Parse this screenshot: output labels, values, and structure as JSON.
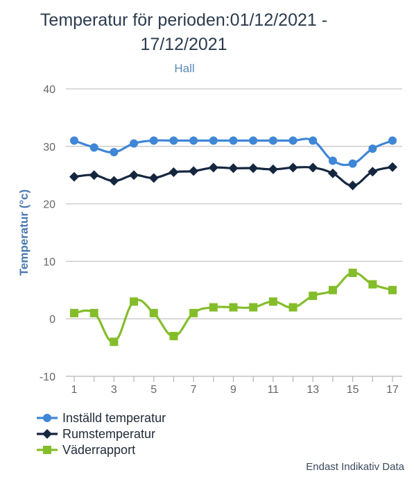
{
  "chart_data": {
    "type": "line",
    "title_line1": "Temperatur för perioden:01/12/2021 -",
    "title_line2": "17/12/2021",
    "subtitle": "Hall",
    "ylabel": "Temperatur (°c)",
    "xlabel": "",
    "x": [
      1,
      2,
      3,
      4,
      5,
      6,
      7,
      8,
      9,
      10,
      11,
      12,
      13,
      14,
      15,
      16,
      17
    ],
    "x_tick_labels": [
      "1",
      "3",
      "5",
      "7",
      "9",
      "11",
      "13",
      "15",
      "17"
    ],
    "y_tick_labels": [
      "40",
      "30",
      "20",
      "10",
      "0",
      "-10"
    ],
    "xlim": [
      1,
      17
    ],
    "ylim": [
      -10,
      40
    ],
    "grid": true,
    "legend_position": "bottom-left",
    "series": [
      {
        "name": "Inställd temperatur",
        "color": "#3f86d6",
        "marker": "circle",
        "values": [
          31,
          29.8,
          29,
          30.5,
          31,
          31,
          31,
          31,
          31,
          31,
          31,
          31,
          31,
          27.5,
          27,
          29.6,
          31
        ]
      },
      {
        "name": "Rumstemperatur",
        "color": "#15263f",
        "marker": "diamond",
        "values": [
          24.7,
          25,
          24,
          25,
          24.5,
          25.5,
          25.7,
          26.3,
          26.2,
          26.2,
          26,
          26.3,
          26.3,
          25.3,
          23.2,
          25.6,
          26.4
        ]
      },
      {
        "name": "Väderrapport",
        "color": "#84bd2a",
        "marker": "square",
        "values": [
          1,
          1,
          -4,
          3,
          1,
          -3,
          1,
          2,
          2,
          2,
          3,
          2,
          4,
          5,
          8,
          6,
          5
        ]
      }
    ]
  },
  "footer": "Endast Indikativ Data"
}
